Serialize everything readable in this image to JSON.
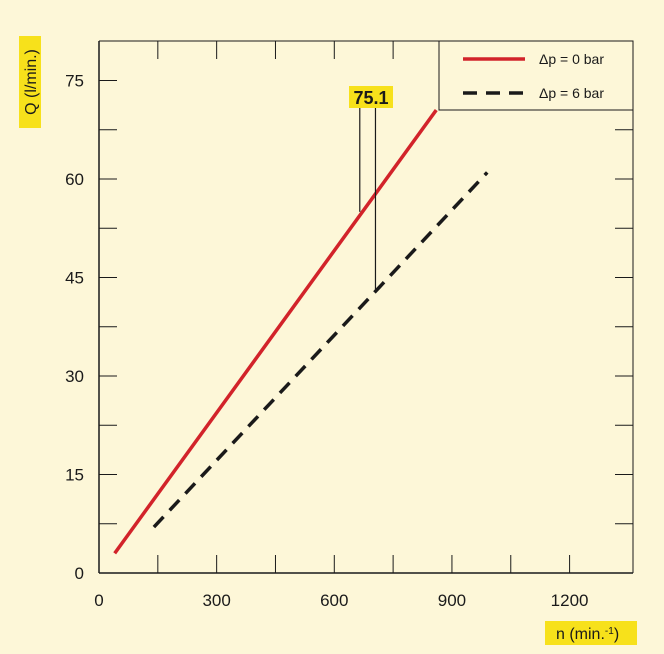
{
  "chart_data": {
    "type": "line",
    "xlabel": "n (min.",
    "xlabel_sup": "-1",
    "xlabel_close": ")",
    "ylabel": "Q (l/min.)",
    "xlim": [
      0,
      1300
    ],
    "ylim": [
      0,
      80
    ],
    "xticks": [
      0,
      300,
      600,
      900,
      1200
    ],
    "yticks": [
      0,
      15,
      30,
      45,
      60,
      75
    ],
    "x_minor_ticks": [
      0,
      150,
      300,
      450,
      600,
      750,
      900,
      1050,
      1200
    ],
    "y_minor_ticks": [
      0,
      7.5,
      15,
      22.5,
      30,
      37.5,
      45,
      52.5,
      60,
      67.5,
      75
    ],
    "grid": false,
    "legend_position": "top-right",
    "series": [
      {
        "name": "Δp = 0 bar",
        "style": "solid",
        "color": "#d2232a",
        "x": [
          40,
          860
        ],
        "y": [
          3,
          70.5
        ]
      },
      {
        "name": "Δp = 6 bar",
        "style": "dashed",
        "color": "#1a1a1a",
        "x": [
          140,
          990
        ],
        "y": [
          7,
          61
        ]
      }
    ],
    "annotation": {
      "text": "75.1",
      "x_lines": [
        665,
        705
      ],
      "to_y": [
        55,
        43
      ]
    }
  },
  "colors": {
    "background": "#fdf7d8",
    "label_highlight": "#f7e11b",
    "axis": "#1a1a1a"
  }
}
